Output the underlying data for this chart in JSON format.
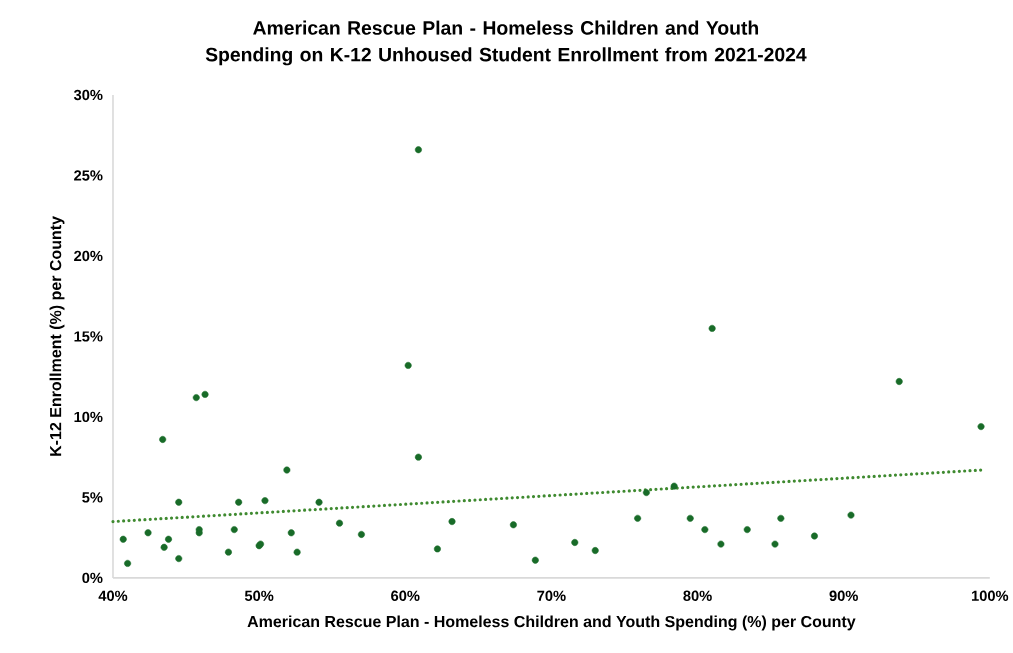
{
  "chart_data": {
    "type": "scatter",
    "title": "American Rescue Plan - Homeless Children and Youth Spending on K-12 Unhoused Student Enrollment from 2021-2024",
    "xlabel": "American Rescue Plan - Homeless Children and Youth Spending (%) per County",
    "ylabel": "K-12 Enrollment (%) per County",
    "xlim": [
      40,
      100
    ],
    "ylim": [
      0,
      30
    ],
    "xticks": [
      {
        "value": 40,
        "label": "40%"
      },
      {
        "value": 50,
        "label": "50%"
      },
      {
        "value": 60,
        "label": "60%"
      },
      {
        "value": 70,
        "label": "70%"
      },
      {
        "value": 80,
        "label": "80%"
      },
      {
        "value": 90,
        "label": "90%"
      },
      {
        "value": 100,
        "label": "100%"
      }
    ],
    "yticks": [
      {
        "value": 0,
        "label": "0%"
      },
      {
        "value": 5,
        "label": "5%"
      },
      {
        "value": 10,
        "label": "10%"
      },
      {
        "value": 15,
        "label": "15%"
      },
      {
        "value": 20,
        "label": "20%"
      },
      {
        "value": 25,
        "label": "25%"
      },
      {
        "value": 30,
        "label": "30%"
      }
    ],
    "series": [
      {
        "marker": "circle",
        "color": "#186b28",
        "x": [
          40.7,
          41.0,
          42.4,
          43.4,
          43.5,
          43.8,
          44.5,
          44.5,
          45.7,
          46.3,
          45.9,
          45.9,
          47.9,
          48.6,
          48.3,
          50.0,
          50.1,
          50.4,
          51.9,
          52.2,
          52.6,
          54.1,
          55.5,
          57.0,
          60.9,
          60.2,
          60.9,
          63.2,
          62.2,
          67.4,
          68.9,
          71.6,
          73.0,
          75.9,
          76.5,
          78.4,
          79.5,
          81.0,
          80.5,
          81.6,
          83.4,
          85.7,
          85.3,
          88.0,
          90.5,
          93.8,
          99.4
        ],
        "values": [
          2.4,
          0.9,
          2.8,
          8.6,
          1.9,
          2.4,
          4.7,
          1.2,
          11.2,
          11.4,
          3.0,
          2.8,
          1.6,
          4.7,
          3.0,
          2.0,
          2.1,
          4.8,
          6.7,
          2.8,
          1.6,
          4.7,
          3.4,
          2.7,
          26.6,
          13.2,
          7.5,
          3.5,
          1.8,
          3.3,
          1.1,
          2.2,
          1.7,
          3.7,
          5.3,
          5.7,
          3.7,
          15.5,
          3.0,
          2.1,
          3.0,
          3.7,
          2.1,
          2.6,
          3.9,
          12.2,
          9.4
        ]
      },
      {
        "type": "line",
        "marker": "none",
        "line_style": "dotted",
        "color": "#3f8a30",
        "x": [
          40,
          99.4
        ],
        "values": [
          3.5,
          6.7
        ]
      }
    ]
  }
}
